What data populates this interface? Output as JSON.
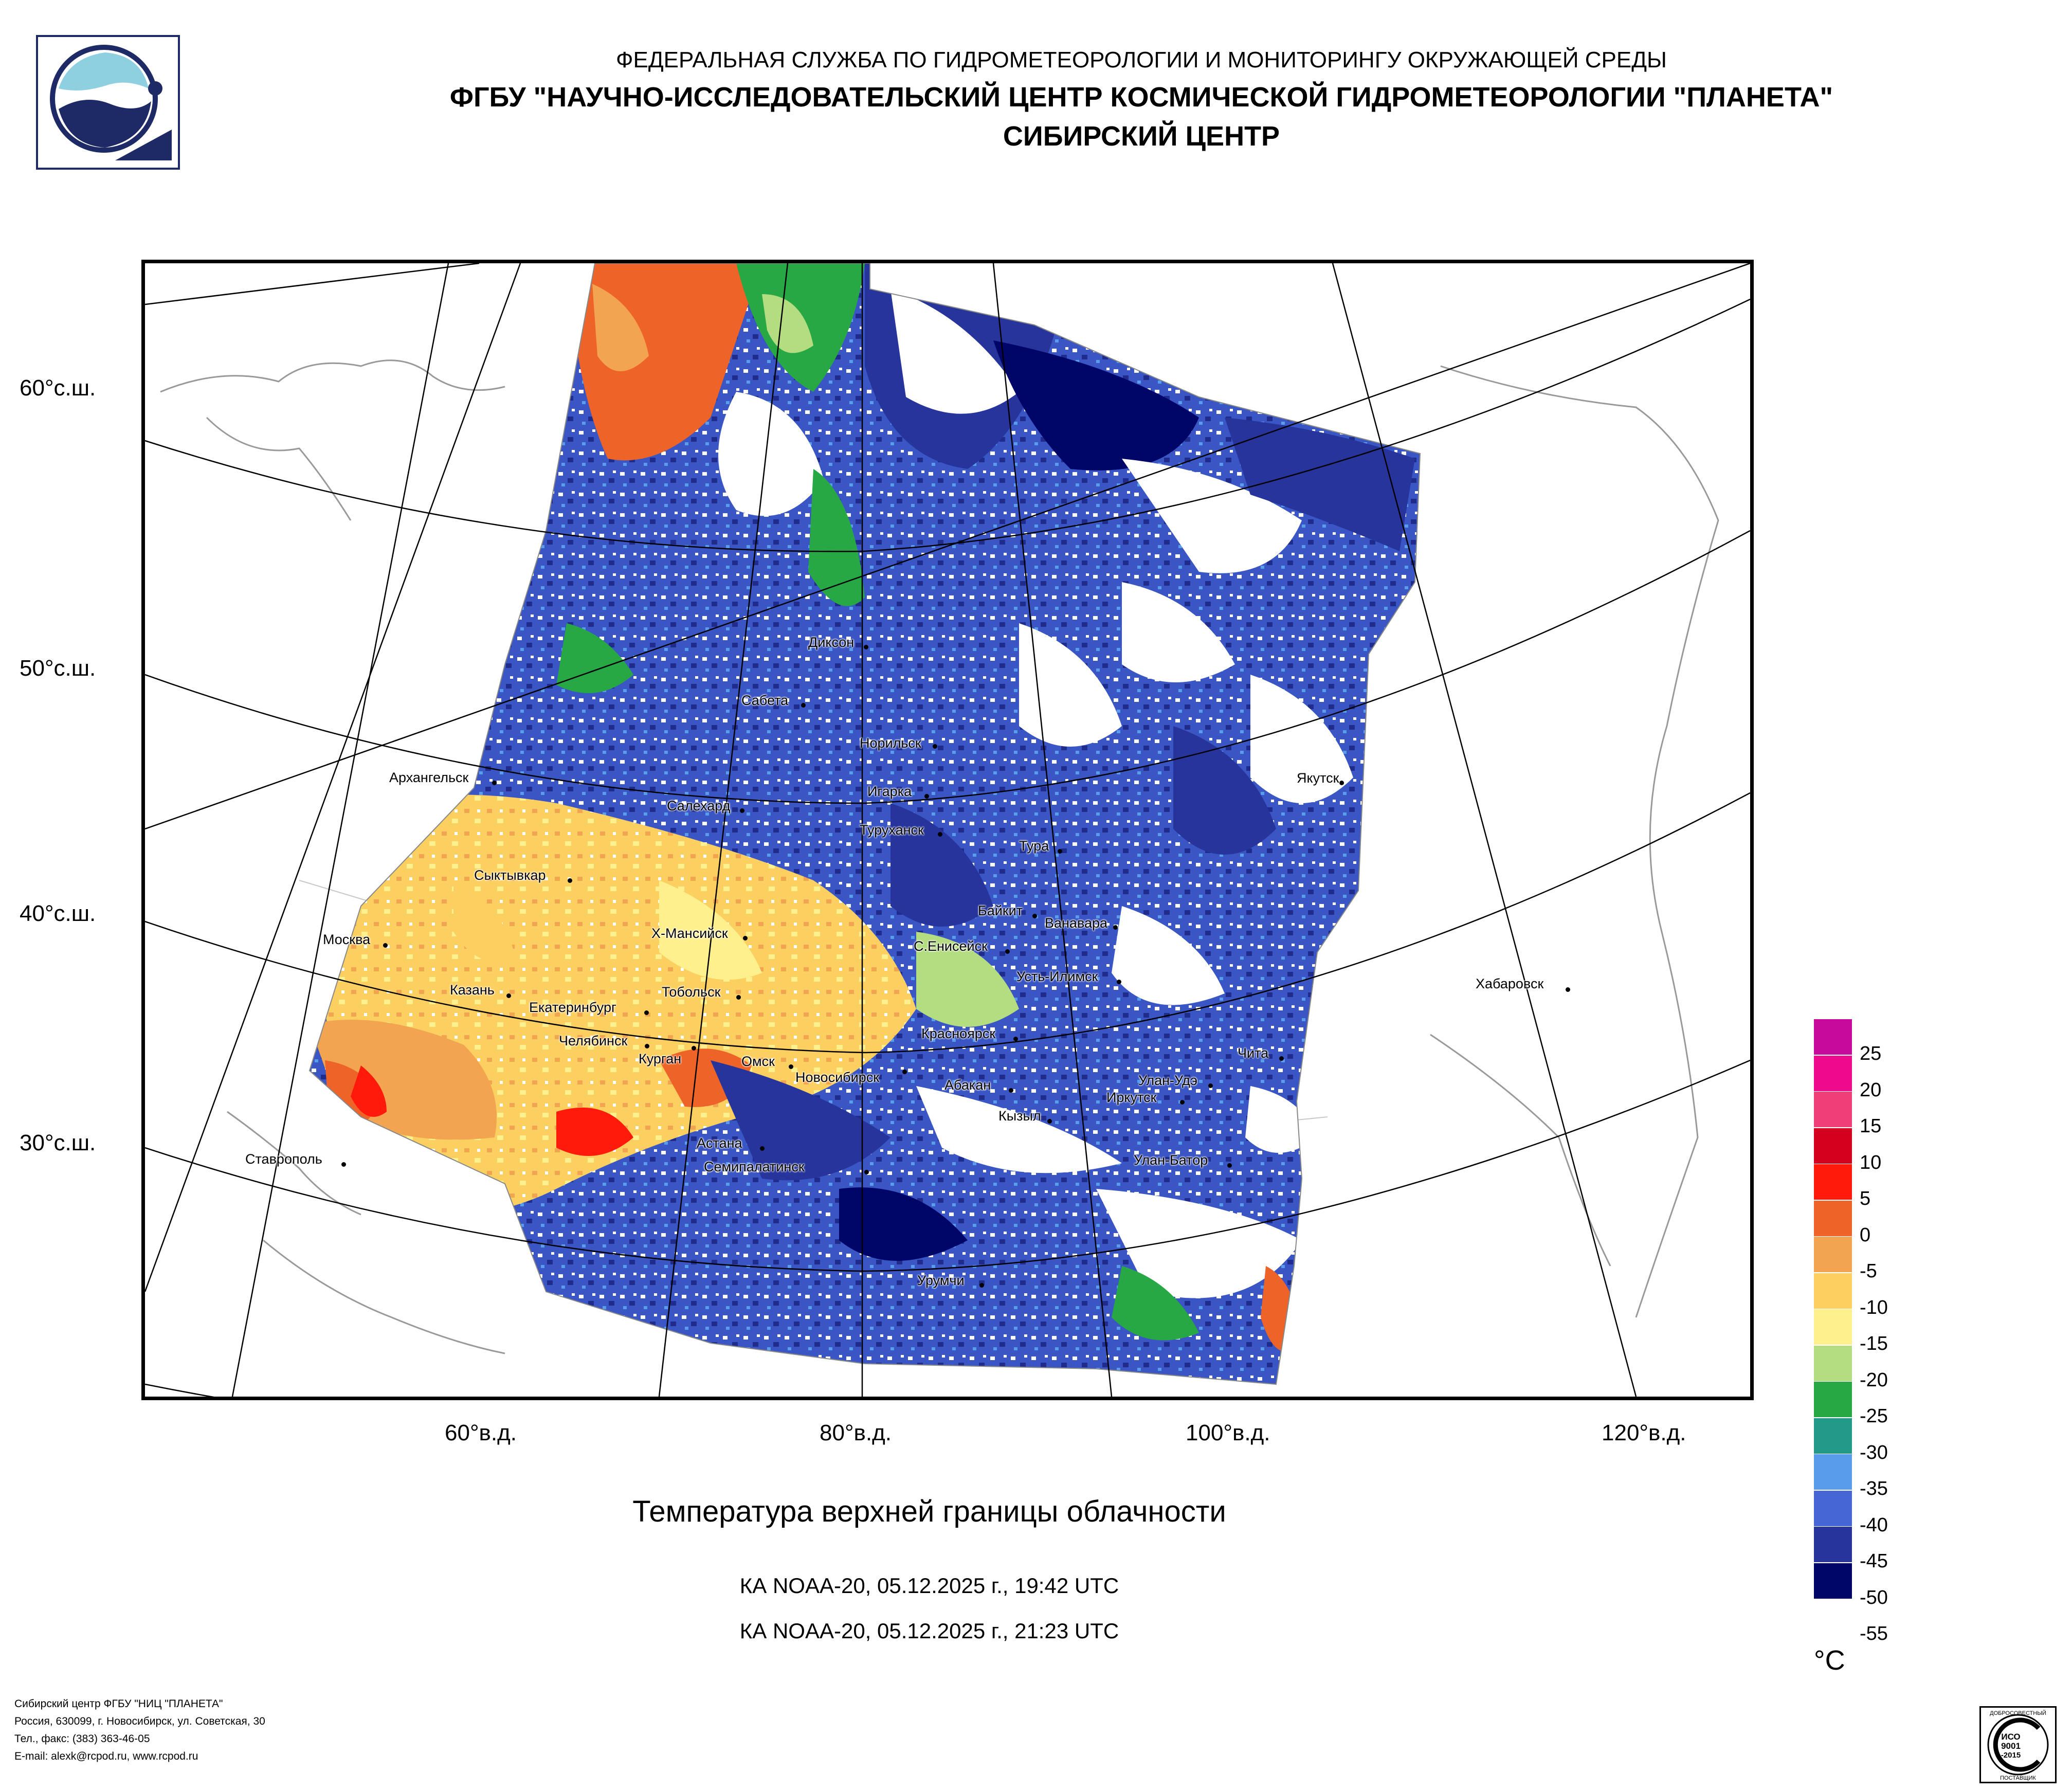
{
  "header": {
    "line1": "ФЕДЕРАЛЬНАЯ СЛУЖБА ПО ГИДРОМЕТЕОРОЛОГИИ И МОНИТОРИНГУ ОКРУЖАЮЩЕЙ СРЕДЫ",
    "line2": "ФГБУ \"НАУЧНО-ИССЛЕДОВАТЕЛЬСКИЙ ЦЕНТР КОСМИЧЕСКОЙ ГИДРОМЕТЕОРОЛОГИИ \"ПЛАНЕТА\"",
    "line3": "СИБИРСКИЙ ЦЕНТР"
  },
  "map": {
    "lat_labels": [
      "60°с.ш.",
      "50°с.ш.",
      "40°с.ш.",
      "30°с.ш."
    ],
    "lon_labels": [
      "60°в.д.",
      "80°в.д.",
      "100°в.д.",
      "120°в.д."
    ],
    "cities": [
      "Диксон",
      "Сабета",
      "Норильск",
      "Игарка",
      "Архангельск",
      "Салехард",
      "Туруханск",
      "Якутск",
      "Тура",
      "Сыктывкар",
      "Байкит",
      "Ванавара",
      "Москва",
      "Х-Мансийск",
      "С.Енисейск",
      "Усть-Илимск",
      "Казань",
      "Екатеринбург",
      "Тобольск",
      "Хабаровск",
      "Челябинск",
      "Курган",
      "Красноярск",
      "Чита",
      "Омск",
      "Новосибирск",
      "Абакан",
      "Улан-Удэ",
      "Иркутск",
      "Кызыл",
      "Ставрополь",
      "Астана",
      "Семипалатинск",
      "Улан-Батор",
      "Урумчи"
    ]
  },
  "title": "Температура верхней границы облачности",
  "passes": [
    "КА NOAA-20, 05.12.2025 г., 19:42 UTC",
    "КА NOAA-20, 05.12.2025 г., 21:23 UTC"
  ],
  "legend": {
    "unit": "°C",
    "labels": [
      "25",
      "20",
      "15",
      "10",
      "5",
      "0",
      "-5",
      "-10",
      "-15",
      "-20",
      "-25",
      "-30",
      "-35",
      "-40",
      "-45",
      "-50",
      "-55"
    ],
    "colors": [
      "#c70a9c",
      "#ee0a8c",
      "#f03e78",
      "#d3001e",
      "#ff1a0c",
      "#ee6428",
      "#f2a450",
      "#fcd060",
      "#fff08e",
      "#b3dd80",
      "#27a844",
      "#229a8a",
      "#5a9cec",
      "#4566d4",
      "#26349c",
      "#000568"
    ]
  },
  "footer": {
    "lines": [
      "Сибирский центр ФГБУ \"НИЦ \"ПЛАНЕТА\"",
      "Россия, 630099, г. Новосибирск, ул. Советская, 30",
      "Тел., факс: (383) 363-46-05",
      "E-mail: alexk@rcpod.ru, www.rcpod.ru"
    ]
  },
  "certificate": {
    "top": "ДОБРОСОВЕСТНЫЙ",
    "mid1": "ИСО",
    "mid2": "9001",
    "mid3": "-2015",
    "bottom": "ПОСТАВЩИК"
  }
}
